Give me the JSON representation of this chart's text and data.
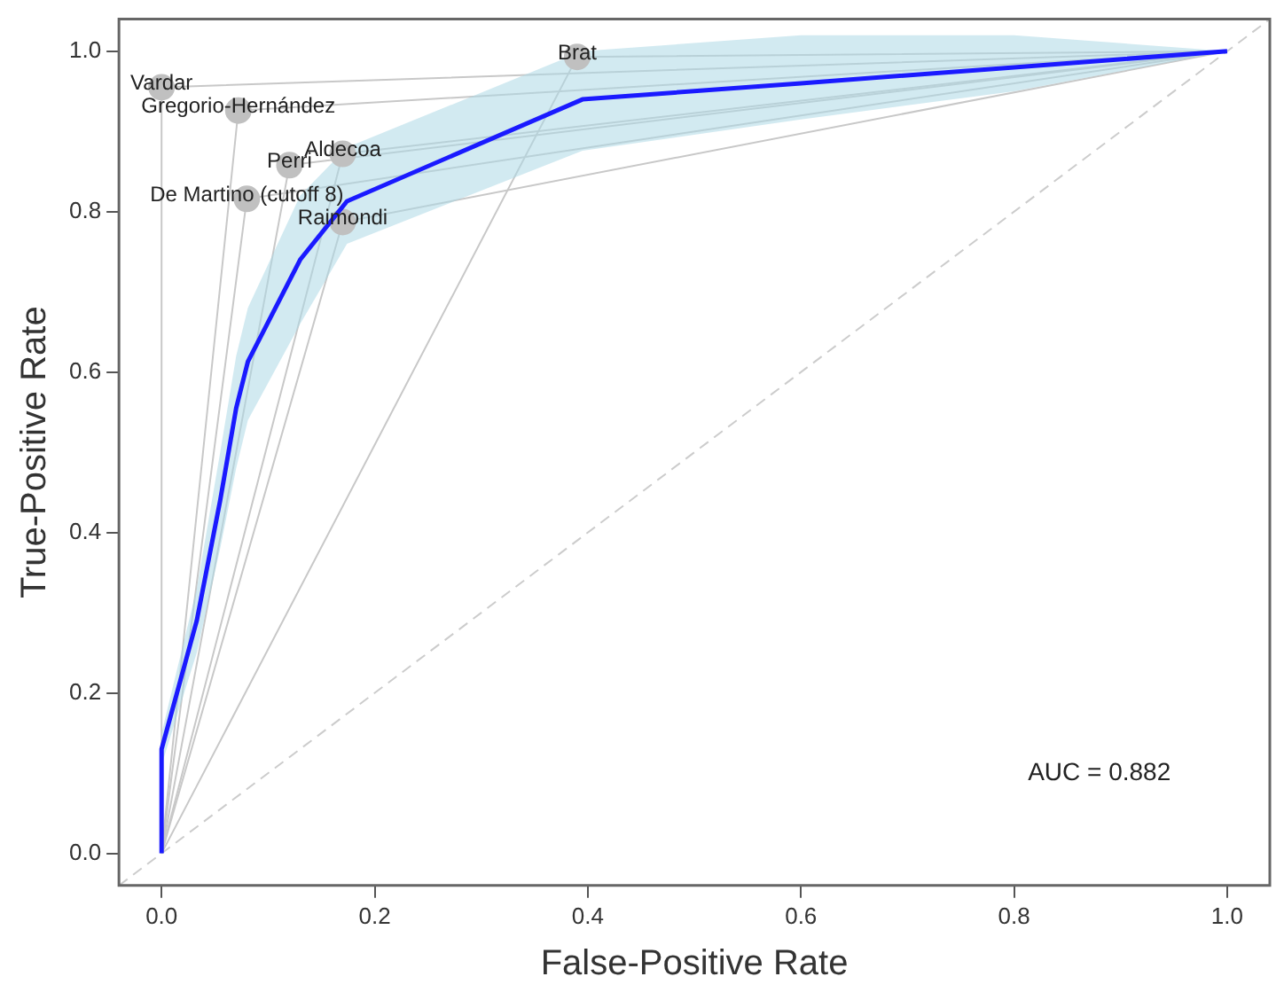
{
  "chart_data": {
    "type": "line",
    "xlabel": "False-Positive Rate",
    "ylabel": "True-Positive Rate",
    "xlim": [
      -0.04,
      1.04
    ],
    "ylim": [
      -0.04,
      1.04
    ],
    "xticks": [
      {
        "value": 0,
        "label": "0.0"
      },
      {
        "value": 0.2,
        "label": "0.2"
      },
      {
        "value": 0.4,
        "label": "0.4"
      },
      {
        "value": 0.6,
        "label": "0.6"
      },
      {
        "value": 0.8,
        "label": "0.8"
      },
      {
        "value": 1,
        "label": "1.0"
      }
    ],
    "yticks": [
      {
        "value": 0,
        "label": "0.0"
      },
      {
        "value": 0.2,
        "label": "0.2"
      },
      {
        "value": 0.4,
        "label": "0.4"
      },
      {
        "value": 0.6,
        "label": "0.6"
      },
      {
        "value": 0.8,
        "label": "0.8"
      },
      {
        "value": 1,
        "label": "1.0"
      }
    ],
    "grid": false,
    "legend": false,
    "marker": "none",
    "annotations": [
      "AUC = 0.882",
      {
        "text": "Vardar",
        "x": 0.0,
        "y": 0.955
      },
      {
        "text": "Gregorio-Hernández",
        "x": 0.072,
        "y": 0.926
      },
      {
        "text": "Perri",
        "x": 0.12,
        "y": 0.858
      },
      {
        "text": "Aldecoa",
        "x": 0.17,
        "y": 0.872
      },
      {
        "text": "De Martino (cutoff 8)",
        "x": 0.08,
        "y": 0.816
      },
      {
        "text": "Raimondi",
        "x": 0.17,
        "y": 0.787
      },
      {
        "text": "Brat",
        "x": 0.39,
        "y": 0.993
      }
    ],
    "series": [
      {
        "color": "#c8c8c8",
        "x": [
          0,
          0.0,
          1
        ],
        "values": [
          0,
          0.955,
          1
        ]
      },
      {
        "color": "#c8c8c8",
        "x": [
          0,
          0.072,
          1
        ],
        "values": [
          0,
          0.926,
          1
        ]
      },
      {
        "color": "#c8c8c8",
        "x": [
          0,
          0.12,
          1
        ],
        "values": [
          0,
          0.858,
          1
        ]
      },
      {
        "color": "#c8c8c8",
        "x": [
          0,
          0.17,
          1
        ],
        "values": [
          0,
          0.872,
          1
        ]
      },
      {
        "color": "#c8c8c8",
        "x": [
          0,
          0.08,
          1
        ],
        "values": [
          0,
          0.816,
          1
        ]
      },
      {
        "color": "#c8c8c8",
        "x": [
          0,
          0.17,
          1
        ],
        "values": [
          0,
          0.787,
          1
        ]
      },
      {
        "color": "#c8c8c8",
        "x": [
          0,
          0.39,
          1
        ],
        "values": [
          0,
          0.993,
          1
        ]
      },
      {
        "color": "#cccccc",
        "line_style": "dashed",
        "x": [
          -0.04,
          1.04
        ],
        "values": [
          -0.04,
          1.04
        ]
      },
      {
        "color": "#1a1aff",
        "x": [
          0,
          0,
          0.033,
          0.055,
          0.07,
          0.081,
          0.13,
          0.174,
          0.395,
          0.6,
          0.8,
          1
        ],
        "values": [
          0,
          0.13,
          0.29,
          0.44,
          0.555,
          0.613,
          0.74,
          0.813,
          0.94,
          0.96,
          0.98,
          1
        ],
        "lower": [
          0,
          0.11,
          0.25,
          0.38,
          0.48,
          0.54,
          0.66,
          0.76,
          0.876,
          0.915,
          0.95,
          1
        ],
        "upper": [
          0,
          0.15,
          0.33,
          0.5,
          0.62,
          0.68,
          0.82,
          0.88,
          1,
          1.02,
          1.02,
          1
        ]
      },
      {
        "type": "scatter",
        "color": "#c0c0c0",
        "marker": "circle",
        "x": [
          0.0,
          0.072,
          0.12,
          0.17,
          0.08,
          0.17,
          0.39
        ],
        "values": [
          0.955,
          0.926,
          0.858,
          0.872,
          0.816,
          0.787,
          0.993
        ]
      }
    ]
  }
}
